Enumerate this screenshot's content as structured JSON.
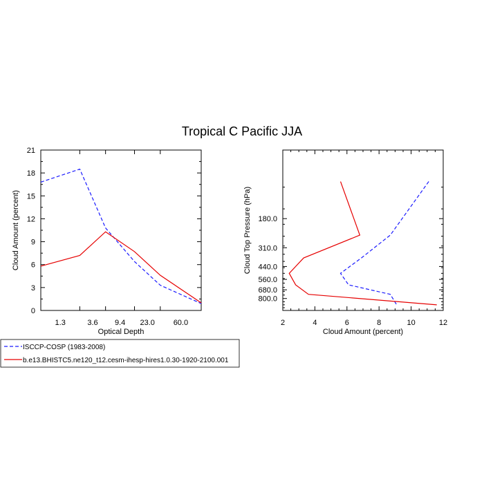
{
  "title": "Tropical C Pacific JJA",
  "colors": {
    "isccp": "#1a1aff",
    "model": "#e60000",
    "axis": "#000000"
  },
  "legend": {
    "placement": "bottom-left",
    "entries": [
      {
        "label": "ISCCP-COSP (1983-2008)",
        "style": "dashed",
        "color": "#1a1aff"
      },
      {
        "label": "b.e13.BHISTC5.ne120_t12.cesm-ihesp-hires1.0.30-1920-2100.001",
        "style": "solid",
        "color": "#e60000"
      }
    ]
  },
  "chart_data": [
    {
      "type": "line",
      "xlabel": "Optical Depth",
      "ylabel": "Cloud Amount (percent)",
      "x": [
        0.5,
        2.0,
        5.0,
        14.0,
        35.0,
        150.0
      ],
      "x_tick_labels": [
        "1.3",
        "3.6",
        "9.4",
        "23.0",
        "60.0"
      ],
      "ylim": [
        0,
        21
      ],
      "y_ticks": [
        0,
        3,
        6,
        9,
        12,
        15,
        18,
        21
      ],
      "series": [
        {
          "name": "ISCCP-COSP (1983-2008)",
          "style": "dashed",
          "values": [
            16.8,
            18.5,
            10.8,
            6.4,
            3.3,
            0.9
          ]
        },
        {
          "name": "b.e13.BHISTC5.ne120_t12.cesm-ihesp-hires1.0.30-1920-2100.001",
          "style": "solid",
          "values": [
            5.8,
            7.2,
            10.3,
            7.7,
            4.6,
            1.0
          ]
        }
      ]
    },
    {
      "type": "line",
      "orientation": "vertical-profile",
      "xlabel": "Cloud Amount (percent)",
      "ylabel": "Cloud Top Pressure (hPa)",
      "xlim": [
        2,
        12
      ],
      "x_ticks": [
        2,
        4,
        6,
        8,
        10,
        12
      ],
      "pressure": [
        90,
        245,
        375,
        500,
        620,
        740,
        900
      ],
      "y_tick_labels": [
        "180.0",
        "310.0",
        "440.0",
        "560.0",
        "680.0",
        "800.0"
      ],
      "y_tick_values": [
        180,
        310,
        440,
        560,
        680,
        800
      ],
      "ylim": [
        50,
        1000
      ],
      "series": [
        {
          "name": "ISCCP-COSP (1983-2008)",
          "style": "dashed",
          "values": [
            11.1,
            8.7,
            6.9,
            5.6,
            6.1,
            8.7,
            9.1
          ]
        },
        {
          "name": "b.e13.BHISTC5.ne120_t12.cesm-ihesp-hires1.0.30-1920-2100.001",
          "style": "solid",
          "values": [
            5.6,
            6.8,
            3.3,
            2.4,
            2.8,
            3.6,
            11.6
          ]
        }
      ]
    }
  ]
}
